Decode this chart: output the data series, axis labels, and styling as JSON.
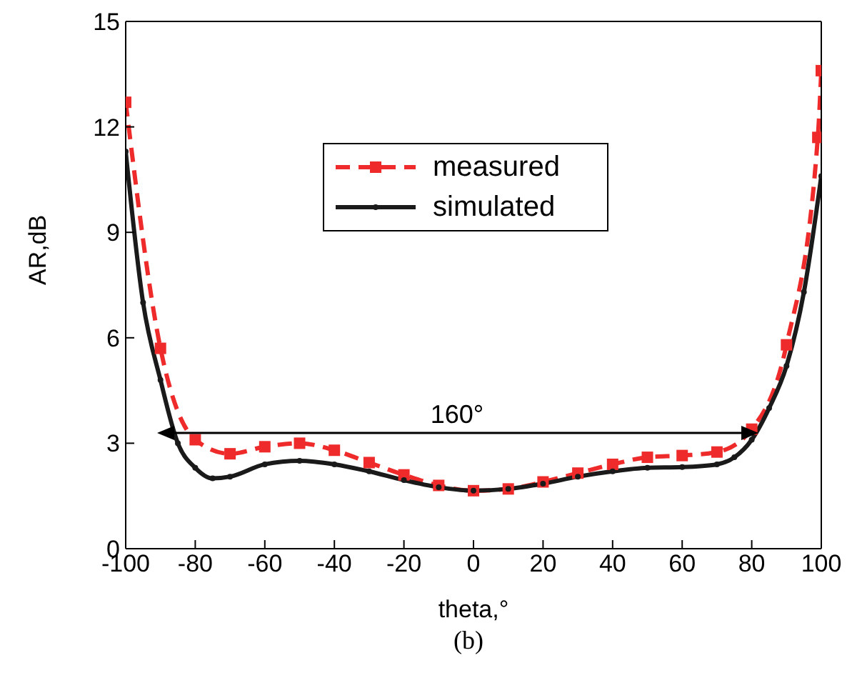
{
  "chart_data": {
    "type": "line",
    "xlabel": "theta,°",
    "ylabel": "AR,dB",
    "xlim": [
      -100,
      100
    ],
    "xticks": [
      -100,
      -80,
      -60,
      -40,
      -20,
      0,
      20,
      40,
      60,
      80,
      100
    ],
    "ylim": [
      0,
      15
    ],
    "yticks": [
      0,
      3,
      6,
      9,
      12,
      15
    ],
    "legend": "top",
    "series": [
      {
        "name": "measured",
        "color": "#ee2a2a",
        "line_style": "dashed",
        "marker": "square",
        "x": [
          -100,
          -90,
          -80,
          -70,
          -60,
          -50,
          -40,
          -30,
          -20,
          -10,
          0,
          10,
          20,
          30,
          40,
          50,
          60,
          70,
          80,
          90,
          99,
          100
        ],
        "values": [
          12.7,
          5.7,
          3.1,
          2.7,
          2.9,
          3.0,
          2.8,
          2.45,
          2.1,
          1.8,
          1.65,
          1.7,
          1.9,
          2.15,
          2.4,
          2.6,
          2.65,
          2.75,
          3.4,
          5.8,
          11.7,
          13.6
        ]
      },
      {
        "name": "simulated",
        "color": "#1a1a1a",
        "line_style": "solid",
        "marker": "circle",
        "x": [
          -100,
          -95,
          -90,
          -85,
          -80,
          -75,
          -70,
          -60,
          -50,
          -40,
          -30,
          -20,
          -10,
          0,
          10,
          20,
          30,
          40,
          50,
          60,
          70,
          75,
          80,
          85,
          90,
          95,
          100
        ],
        "values": [
          11.3,
          7.0,
          4.8,
          3.0,
          2.3,
          2.0,
          2.05,
          2.4,
          2.5,
          2.4,
          2.2,
          1.95,
          1.75,
          1.65,
          1.7,
          1.85,
          2.05,
          2.2,
          2.3,
          2.32,
          2.4,
          2.6,
          3.1,
          4.0,
          5.2,
          7.3,
          10.6
        ]
      }
    ],
    "annotations": [
      "160°",
      "(b)"
    ]
  }
}
